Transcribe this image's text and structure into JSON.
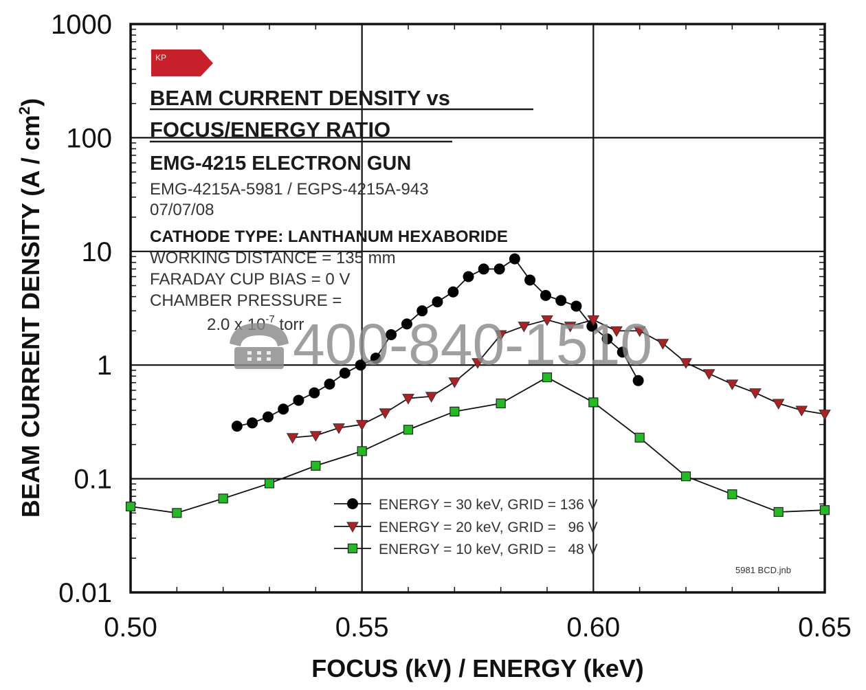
{
  "colors": {
    "series_30": "#000000",
    "series_20": "#b02020",
    "series_10": "#22bb22",
    "logo": "#c8202a",
    "watermark": "#8a8a8a"
  },
  "logo": {
    "label": "KP"
  },
  "annotation": {
    "title_line1": "BEAM CURRENT DENSITY vs",
    "title_line2": "FOCUS/ENERGY RATIO",
    "subtitle": "EMG-4215 ELECTRON GUN",
    "model": "EMG-4215A-5981 / EGPS-4215A-943",
    "date": "07/07/08",
    "cathode": "CATHODE TYPE: LANTHANUM HEXABORIDE",
    "working_distance": "WORKING DISTANCE = 135 mm",
    "faraday": "FARADAY CUP BIAS = 0 V",
    "chamber": "CHAMBER PRESSURE =",
    "pressure_mantissa": "2.0 x 10",
    "pressure_exponent": "-7",
    "pressure_unit": " torr"
  },
  "file_label": "5981 BCD.jnb",
  "watermark": {
    "icon": "telephone-icon",
    "text": "400-840-1510"
  },
  "chart_data": {
    "type": "line",
    "xlabel": "FOCUS (kV) / ENERGY (keV)",
    "ylabel_main": "BEAM CURRENT DENSITY (A / cm",
    "ylabel_sup": "2",
    "ylabel_close": ")",
    "xlim": [
      0.5,
      0.65
    ],
    "ylim": [
      0.01,
      1000
    ],
    "y_scale": "log",
    "grid": true,
    "legend_position": "lower-right",
    "xticks": [
      {
        "value": 0.5,
        "label": "0.50"
      },
      {
        "value": 0.55,
        "label": "0.55"
      },
      {
        "value": 0.6,
        "label": "0.60"
      },
      {
        "value": 0.65,
        "label": "0.65"
      }
    ],
    "yticks": [
      {
        "value": 0.01,
        "label": "0.01"
      },
      {
        "value": 0.1,
        "label": "0.1"
      },
      {
        "value": 1,
        "label": "1"
      },
      {
        "value": 10,
        "label": "10"
      },
      {
        "value": 100,
        "label": "100"
      },
      {
        "value": 1000,
        "label": "1000"
      }
    ],
    "series": [
      {
        "name": "ENERGY = 30 keV, GRID = 136 V",
        "marker": "circle",
        "color": "#000000",
        "x": [
          0.523,
          0.5263,
          0.5297,
          0.533,
          0.5363,
          0.5397,
          0.543,
          0.5463,
          0.5497,
          0.553,
          0.5563,
          0.5597,
          0.563,
          0.5663,
          0.5697,
          0.573,
          0.5763,
          0.5797,
          0.583,
          0.5863,
          0.5897,
          0.593,
          0.5963,
          0.5997,
          0.603,
          0.6063,
          0.6097
        ],
        "y": [
          0.29,
          0.31,
          0.35,
          0.41,
          0.49,
          0.57,
          0.68,
          0.85,
          1.0,
          1.15,
          1.85,
          2.3,
          3.0,
          3.6,
          4.4,
          6.0,
          7.0,
          7.0,
          8.6,
          5.6,
          4.1,
          3.7,
          3.3,
          2.2,
          1.7,
          1.3,
          0.73
        ]
      },
      {
        "name": "ENERGY = 20 keV, GRID =   96 V",
        "marker": "triangle-down",
        "color": "#b02020",
        "x": [
          0.535,
          0.54,
          0.545,
          0.55,
          0.555,
          0.56,
          0.565,
          0.57,
          0.575,
          0.58,
          0.585,
          0.59,
          0.595,
          0.6,
          0.605,
          0.61,
          0.615,
          0.62,
          0.625,
          0.63,
          0.635,
          0.64,
          0.645,
          0.65
        ],
        "y": [
          0.23,
          0.24,
          0.28,
          0.3,
          0.38,
          0.51,
          0.53,
          0.71,
          1.05,
          1.85,
          2.2,
          2.5,
          2.2,
          2.5,
          2.0,
          2.0,
          1.55,
          1.05,
          0.84,
          0.68,
          0.57,
          0.46,
          0.4,
          0.37
        ]
      },
      {
        "name": "ENERGY = 10 keV, GRID =   48 V",
        "marker": "square",
        "color": "#22bb22",
        "x": [
          0.5,
          0.51,
          0.52,
          0.53,
          0.54,
          0.55,
          0.56,
          0.57,
          0.58,
          0.59,
          0.6,
          0.61,
          0.62,
          0.63,
          0.64,
          0.65
        ],
        "y": [
          0.057,
          0.05,
          0.067,
          0.091,
          0.13,
          0.175,
          0.27,
          0.39,
          0.46,
          0.78,
          0.47,
          0.23,
          0.105,
          0.073,
          0.051,
          0.053
        ]
      }
    ]
  }
}
